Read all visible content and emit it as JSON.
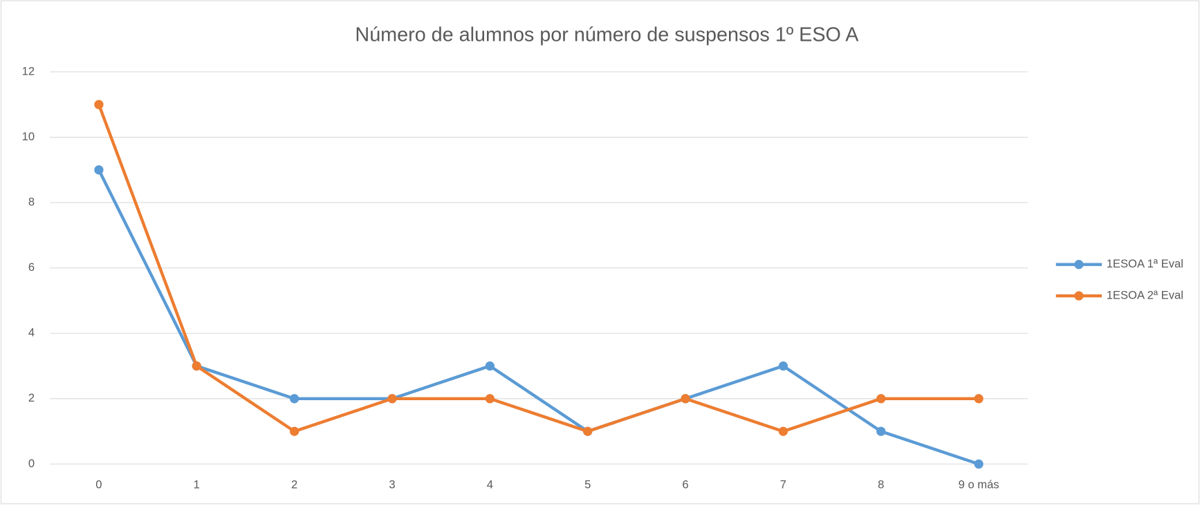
{
  "chart_data": {
    "type": "line",
    "title": "Número de alumnos por número de suspensos 1º ESO A",
    "categories": [
      "0",
      "1",
      "2",
      "3",
      "4",
      "5",
      "6",
      "7",
      "8",
      "9 o más"
    ],
    "series": [
      {
        "name": "1ESOA 1ª Eval",
        "color": "#5b9bd5",
        "values": [
          9,
          3,
          2,
          2,
          3,
          1,
          2,
          3,
          1,
          0
        ]
      },
      {
        "name": "1ESOA 2ª Eval",
        "color": "#ed7d31",
        "values": [
          11,
          3,
          1,
          2,
          2,
          1,
          2,
          1,
          2,
          2
        ]
      }
    ],
    "ylim": [
      0,
      12
    ],
    "yticks": [
      0,
      2,
      4,
      6,
      8,
      10,
      12
    ],
    "grid": true,
    "legend": "right"
  }
}
